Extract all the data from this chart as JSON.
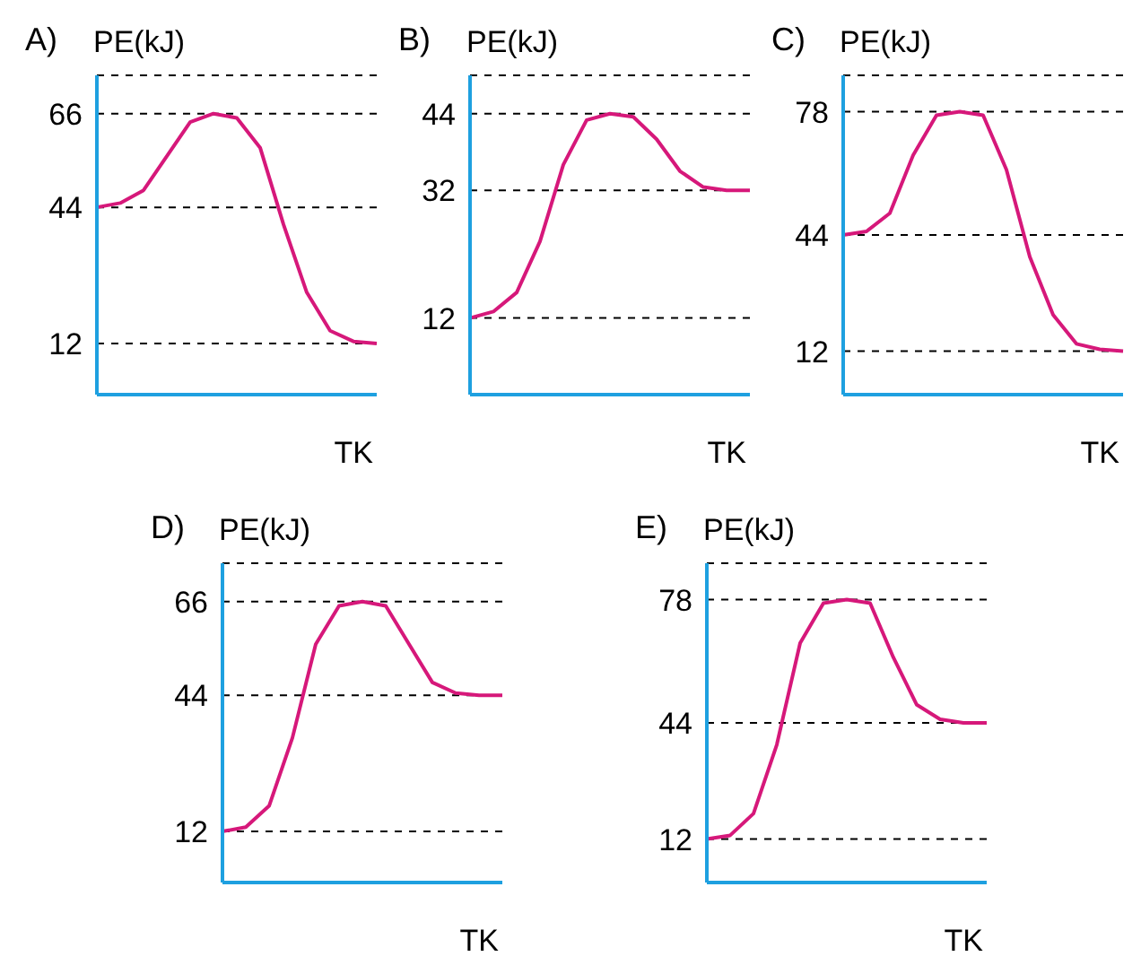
{
  "chart_data": [
    {
      "type": "line",
      "title": "A)",
      "ylabel": "PE(kJ)",
      "xlabel": "TK",
      "categories": [
        null,
        null,
        null,
        null,
        null,
        null,
        null,
        null,
        null,
        null,
        null,
        null,
        null
      ],
      "series": [
        {
          "color": "#d6187a",
          "values": [
            44,
            45,
            48,
            56,
            64,
            66,
            65,
            58,
            40,
            24,
            15,
            12.5,
            12
          ]
        }
      ],
      "ylim": [
        0,
        75
      ],
      "yticks": [
        12,
        44,
        66
      ],
      "grid": "y",
      "tick_labels": "y",
      "marker": "none",
      "line_style": "solid",
      "legend": false
    },
    {
      "type": "line",
      "title": "B)",
      "ylabel": "PE(kJ)",
      "xlabel": "TK",
      "categories": [
        null,
        null,
        null,
        null,
        null,
        null,
        null,
        null,
        null,
        null,
        null,
        null,
        null
      ],
      "series": [
        {
          "color": "#d6187a",
          "values": [
            12,
            13,
            16,
            24,
            36,
            43,
            44,
            43.5,
            40,
            35,
            32.5,
            32,
            32
          ]
        }
      ],
      "ylim": [
        0,
        50
      ],
      "yticks": [
        12,
        32,
        44
      ],
      "grid": "y",
      "tick_labels": "y",
      "marker": "none",
      "line_style": "solid",
      "legend": false
    },
    {
      "type": "line",
      "title": "C)",
      "ylabel": "PE(kJ)",
      "xlabel": "TK",
      "categories": [
        null,
        null,
        null,
        null,
        null,
        null,
        null,
        null,
        null,
        null,
        null,
        null,
        null
      ],
      "series": [
        {
          "color": "#d6187a",
          "values": [
            44,
            45,
            50,
            66,
            77,
            78,
            77,
            62,
            38,
            22,
            14,
            12.5,
            12
          ]
        }
      ],
      "ylim": [
        0,
        88
      ],
      "yticks": [
        12,
        44,
        78
      ],
      "grid": "y",
      "tick_labels": "y",
      "marker": "none",
      "line_style": "solid",
      "legend": false
    },
    {
      "type": "line",
      "title": "D)",
      "ylabel": "PE(kJ)",
      "xlabel": "TK",
      "categories": [
        null,
        null,
        null,
        null,
        null,
        null,
        null,
        null,
        null,
        null,
        null,
        null,
        null
      ],
      "series": [
        {
          "color": "#d6187a",
          "values": [
            12,
            13,
            18,
            34,
            56,
            65,
            66,
            65,
            56,
            47,
            44.5,
            44,
            44
          ]
        }
      ],
      "ylim": [
        0,
        75
      ],
      "yticks": [
        12,
        44,
        66
      ],
      "grid": "y",
      "tick_labels": "y",
      "marker": "none",
      "line_style": "solid",
      "legend": false
    },
    {
      "type": "line",
      "title": "E)",
      "ylabel": "PE(kJ)",
      "xlabel": "TK",
      "categories": [
        null,
        null,
        null,
        null,
        null,
        null,
        null,
        null,
        null,
        null,
        null,
        null,
        null
      ],
      "series": [
        {
          "color": "#d6187a",
          "values": [
            12,
            13,
            19,
            38,
            66,
            77,
            78,
            77,
            62,
            49,
            45,
            44,
            44
          ]
        }
      ],
      "ylim": [
        0,
        88
      ],
      "yticks": [
        12,
        44,
        78
      ],
      "grid": "y",
      "tick_labels": "y",
      "marker": "none",
      "line_style": "solid",
      "legend": false
    }
  ]
}
